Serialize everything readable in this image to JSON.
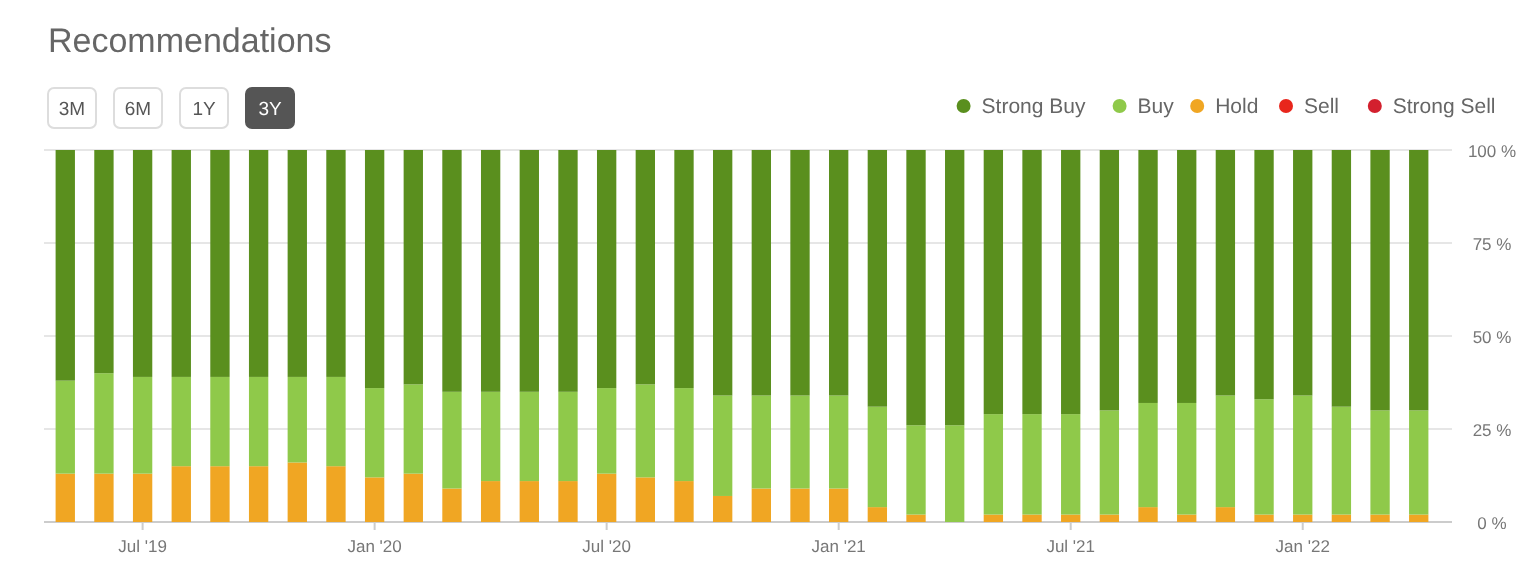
{
  "chart_data": {
    "type": "bar",
    "title": "Recommendations",
    "stacked": true,
    "categories": [
      null,
      null,
      "Jul '19",
      null,
      null,
      null,
      null,
      null,
      "Jan '20",
      null,
      null,
      null,
      null,
      null,
      "Jul '20",
      null,
      null,
      null,
      null,
      null,
      "Jan '21",
      null,
      null,
      null,
      null,
      null,
      "Jul '21",
      null,
      null,
      null,
      null,
      null,
      "Jan '22",
      null,
      null,
      null
    ],
    "series": [
      {
        "name": "Hold",
        "color": "#f0a623",
        "values": [
          13,
          13,
          13,
          15,
          15,
          15,
          16,
          15,
          12,
          13,
          9,
          11,
          11,
          11,
          13,
          12,
          11,
          7,
          9,
          9,
          9,
          4,
          2,
          0,
          2,
          2,
          2,
          2,
          4,
          2,
          4,
          2,
          2,
          2,
          2,
          2
        ]
      },
      {
        "name": "Buy",
        "color": "#8fc94a",
        "values": [
          25,
          27,
          26,
          24,
          24,
          24,
          23,
          24,
          24,
          24,
          26,
          24,
          24,
          24,
          23,
          25,
          25,
          27,
          25,
          25,
          25,
          27,
          24,
          26,
          27,
          27,
          27,
          28,
          28,
          30,
          30,
          31,
          32,
          29,
          28,
          28
        ]
      },
      {
        "name": "Strong Buy",
        "color": "#5a8f1e",
        "values": [
          62,
          60,
          61,
          61,
          61,
          61,
          61,
          61,
          64,
          63,
          65,
          65,
          65,
          65,
          64,
          63,
          64,
          66,
          66,
          66,
          66,
          69,
          74,
          74,
          71,
          71,
          71,
          70,
          68,
          68,
          66,
          67,
          66,
          69,
          70,
          70
        ]
      },
      {
        "name": "Sell",
        "color": "#e8261c",
        "values": [
          0,
          0,
          0,
          0,
          0,
          0,
          0,
          0,
          0,
          0,
          0,
          0,
          0,
          0,
          0,
          0,
          0,
          0,
          0,
          0,
          0,
          0,
          0,
          0,
          0,
          0,
          0,
          0,
          0,
          0,
          0,
          0,
          0,
          0,
          0,
          0
        ]
      },
      {
        "name": "Strong Sell",
        "color": "#d3202e",
        "values": [
          0,
          0,
          0,
          0,
          0,
          0,
          0,
          0,
          0,
          0,
          0,
          0,
          0,
          0,
          0,
          0,
          0,
          0,
          0,
          0,
          0,
          0,
          0,
          0,
          0,
          0,
          0,
          0,
          0,
          0,
          0,
          0,
          0,
          0,
          0,
          0
        ]
      }
    ],
    "ylim": [
      0,
      100
    ],
    "yticks": [
      {
        "value": 0,
        "label": "0 %"
      },
      {
        "value": 25,
        "label": "25 %"
      },
      {
        "value": 50,
        "label": "50 %"
      },
      {
        "value": 75,
        "label": "75 %"
      },
      {
        "value": 100,
        "label": "100 %"
      }
    ],
    "grid": "y",
    "legend": "top right",
    "annotations": [
      "3M",
      "6M",
      "1Y",
      "3Y"
    ]
  }
}
